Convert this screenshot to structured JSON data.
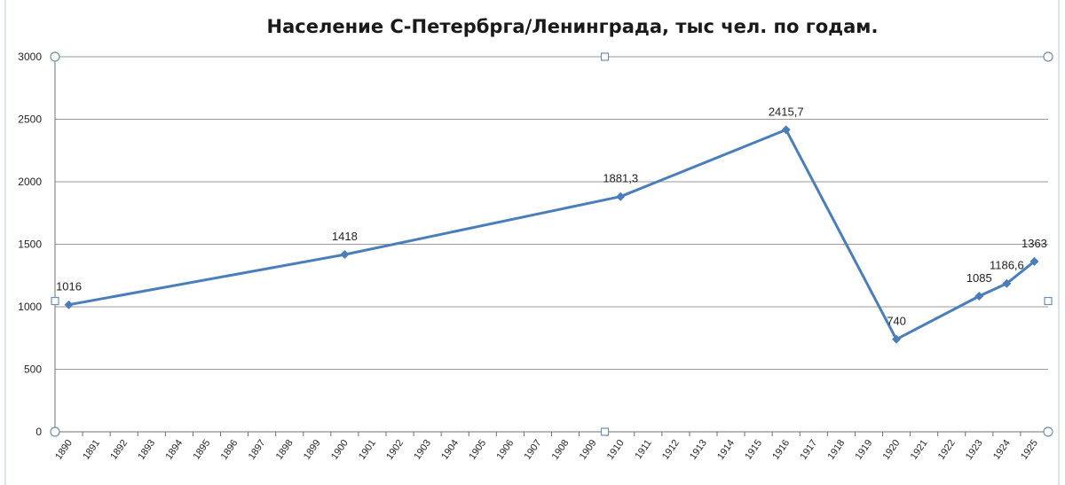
{
  "chart_data": {
    "type": "line",
    "title": "Население С-Петербрга/Ленинграда, тыс чел. по годам.",
    "xlabel": "",
    "ylabel": "",
    "ylim": [
      0,
      3000
    ],
    "yticks": [
      0,
      500,
      1000,
      1500,
      2000,
      2500,
      3000
    ],
    "categories": [
      "1890",
      "1891",
      "1892",
      "1893",
      "1894",
      "1895",
      "1896",
      "1897",
      "1898",
      "1899",
      "1900",
      "1901",
      "1902",
      "1903",
      "1904",
      "1905",
      "1906",
      "1907",
      "1908",
      "1909",
      "1910",
      "1911",
      "1912",
      "1913",
      "1914",
      "1915",
      "1916",
      "1917",
      "1918",
      "1919",
      "1920",
      "1921",
      "1922",
      "1923",
      "1924",
      "1925"
    ],
    "grid": true,
    "legend": "none",
    "line_color": "#4a7ebb",
    "series": [
      {
        "points": [
          {
            "x": "1890",
            "y": 1016,
            "label": "1016"
          },
          {
            "x": "1900",
            "y": 1418,
            "label": "1418"
          },
          {
            "x": "1910",
            "y": 1881.3,
            "label": "1881,3"
          },
          {
            "x": "1916",
            "y": 2415.7,
            "label": "2415,7"
          },
          {
            "x": "1920",
            "y": 740,
            "label": "740"
          },
          {
            "x": "1923",
            "y": 1085,
            "label": "1085"
          },
          {
            "x": "1924",
            "y": 1186.6,
            "label": "1186,6"
          },
          {
            "x": "1925",
            "y": 1363,
            "label": "1363"
          }
        ]
      }
    ]
  }
}
